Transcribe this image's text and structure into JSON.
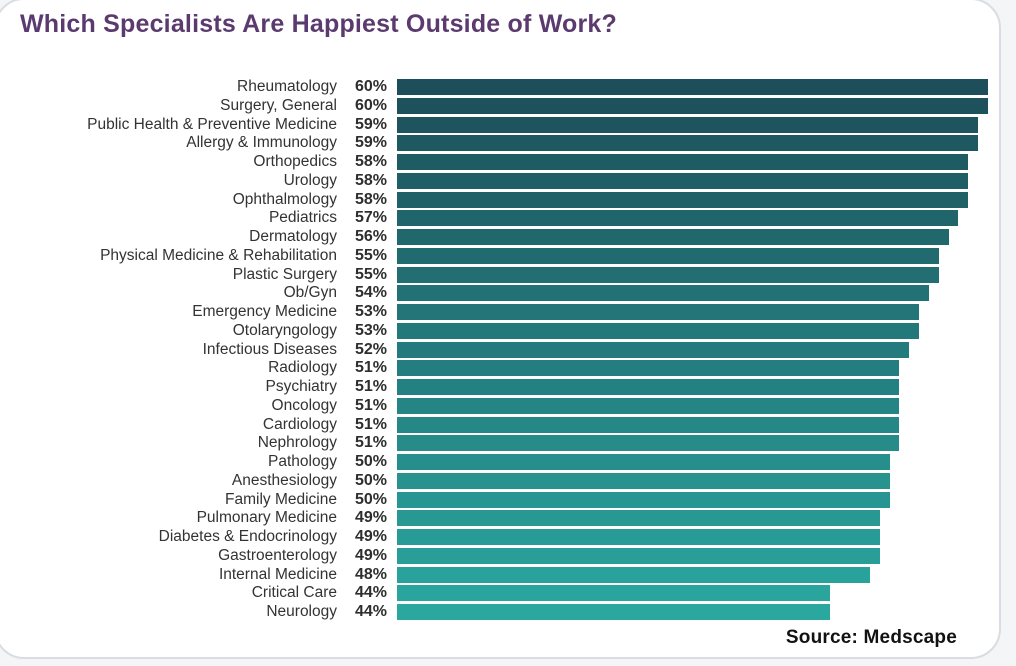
{
  "title": "Which Specialists Are Happiest Outside of Work?",
  "source_label": "Source: Medscape",
  "theme": {
    "title_color": "#5b3b6f",
    "bar_color_start": "#1d4e59",
    "bar_color_end": "#2aa8a0",
    "label_color": "#333333",
    "card_border_color": "#d9dde1",
    "page_background": "#f3f5f6"
  },
  "chart_data": {
    "type": "bar",
    "orientation": "horizontal",
    "title": "Which Specialists Are Happiest Outside of Work?",
    "value_suffix": "%",
    "xlim": [
      0,
      60
    ],
    "grid": false,
    "legend": "none",
    "categories": [
      "Rheumatology",
      "Surgery, General",
      "Public Health & Preventive Medicine",
      "Allergy & Immunology",
      "Orthopedics",
      "Urology",
      "Ophthalmology",
      "Pediatrics",
      "Dermatology",
      "Physical Medicine & Rehabilitation",
      "Plastic Surgery",
      "Ob/Gyn",
      "Emergency Medicine",
      "Otolaryngology",
      "Infectious Diseases",
      "Radiology",
      "Psychiatry",
      "Oncology",
      "Cardiology",
      "Nephrology",
      "Pathology",
      "Anesthesiology",
      "Family Medicine",
      "Pulmonary Medicine",
      "Diabetes & Endocrinology",
      "Gastroenterology",
      "Internal Medicine",
      "Critical Care",
      "Neurology"
    ],
    "values": [
      60,
      60,
      59,
      59,
      58,
      58,
      58,
      57,
      56,
      55,
      55,
      54,
      53,
      53,
      52,
      51,
      51,
      51,
      51,
      51,
      50,
      50,
      50,
      49,
      49,
      49,
      48,
      44,
      44
    ]
  }
}
